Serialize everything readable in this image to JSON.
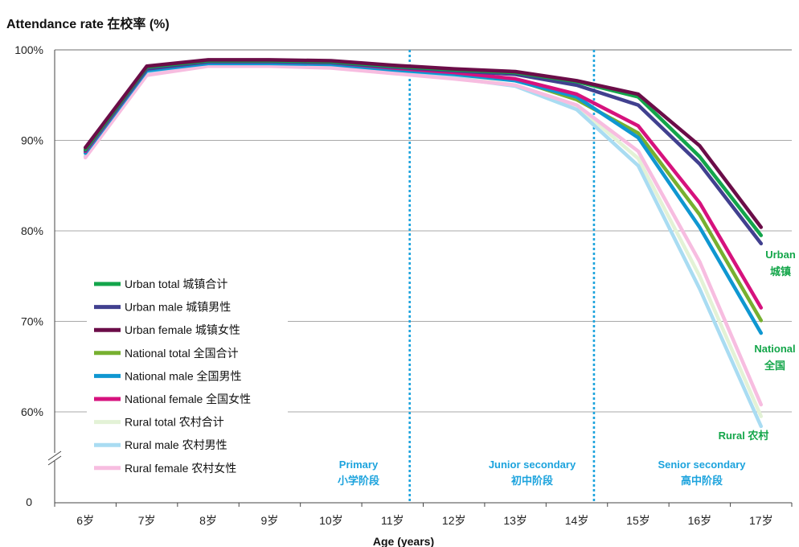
{
  "chart_data": {
    "type": "line",
    "title": "Attendance rate  在校率 (%)",
    "xlabel": "Age (years)",
    "ylabel": "",
    "categories": [
      "6岁",
      "7岁",
      "8岁",
      "9岁",
      "10岁",
      "11岁",
      "12岁",
      "13岁",
      "14岁",
      "15岁",
      "16岁",
      "17岁"
    ],
    "ylim": [
      60,
      100
    ],
    "y_ticks": [
      "100%",
      "90%",
      "80%",
      "70%",
      "60%"
    ],
    "y_tick_values": [
      100,
      90,
      80,
      70,
      60
    ],
    "y_zero_label": "0",
    "y_axis_break": true,
    "grid": true,
    "legend_position": "left",
    "series": [
      {
        "name": "Urban total 城镇合计",
        "color": "#13a54b",
        "values": [
          89.0,
          98.1,
          98.8,
          98.8,
          98.7,
          98.2,
          97.8,
          97.5,
          96.5,
          94.8,
          88.2,
          79.5
        ]
      },
      {
        "name": "Urban male 城镇男性",
        "color": "#41408f",
        "values": [
          88.9,
          97.9,
          98.7,
          98.7,
          98.6,
          98.1,
          97.7,
          97.3,
          96.1,
          93.9,
          87.4,
          78.6
        ]
      },
      {
        "name": "Urban female 城镇女性",
        "color": "#6b0d48",
        "values": [
          89.2,
          98.2,
          98.9,
          98.9,
          98.8,
          98.3,
          97.9,
          97.6,
          96.6,
          95.1,
          89.4,
          80.4
        ]
      },
      {
        "name": "National total 全国合计",
        "color": "#77b030",
        "values": [
          88.7,
          97.8,
          98.6,
          98.6,
          98.5,
          97.9,
          97.4,
          96.7,
          94.5,
          90.8,
          81.8,
          70.1
        ]
      },
      {
        "name": "National male 全国男性",
        "color": "#0f97d1",
        "values": [
          88.6,
          97.7,
          98.5,
          98.5,
          98.4,
          97.8,
          97.3,
          96.6,
          94.8,
          90.3,
          80.4,
          68.7
        ]
      },
      {
        "name": "National female 全国女性",
        "color": "#d6127d",
        "values": [
          88.8,
          97.9,
          98.7,
          98.7,
          98.6,
          98.0,
          97.5,
          96.8,
          95.1,
          91.6,
          83.1,
          71.5
        ]
      },
      {
        "name": "Rural total 农村合计",
        "color": "#e3f2d6",
        "values": [
          88.3,
          97.4,
          98.4,
          98.4,
          98.2,
          97.6,
          97.0,
          96.1,
          93.8,
          88.0,
          75.0,
          59.5
        ]
      },
      {
        "name": "Rural male 农村男性",
        "color": "#a9dcf2",
        "values": [
          88.2,
          97.3,
          98.3,
          98.3,
          98.1,
          97.5,
          96.9,
          96.0,
          93.4,
          87.2,
          73.6,
          58.4
        ]
      },
      {
        "name": "Rural female 农村女性",
        "color": "#f7bde0",
        "values": [
          88.1,
          97.2,
          98.2,
          98.2,
          98.0,
          97.4,
          96.8,
          96.1,
          93.9,
          88.8,
          76.6,
          60.8
        ]
      }
    ],
    "stage_dividers": [
      {
        "after_category": "11岁"
      },
      {
        "after_category": "14岁"
      }
    ],
    "stage_labels": [
      {
        "en": "Primary",
        "zh": "小学阶段"
      },
      {
        "en": "Junior secondary",
        "zh": "初中阶段"
      },
      {
        "en": "Senior secondary",
        "zh": "高中阶段"
      }
    ],
    "end_labels": [
      {
        "en": "Urban",
        "zh": "城镇"
      },
      {
        "en": "National",
        "zh": "全国"
      },
      {
        "text": "Rural  农村"
      }
    ]
  }
}
